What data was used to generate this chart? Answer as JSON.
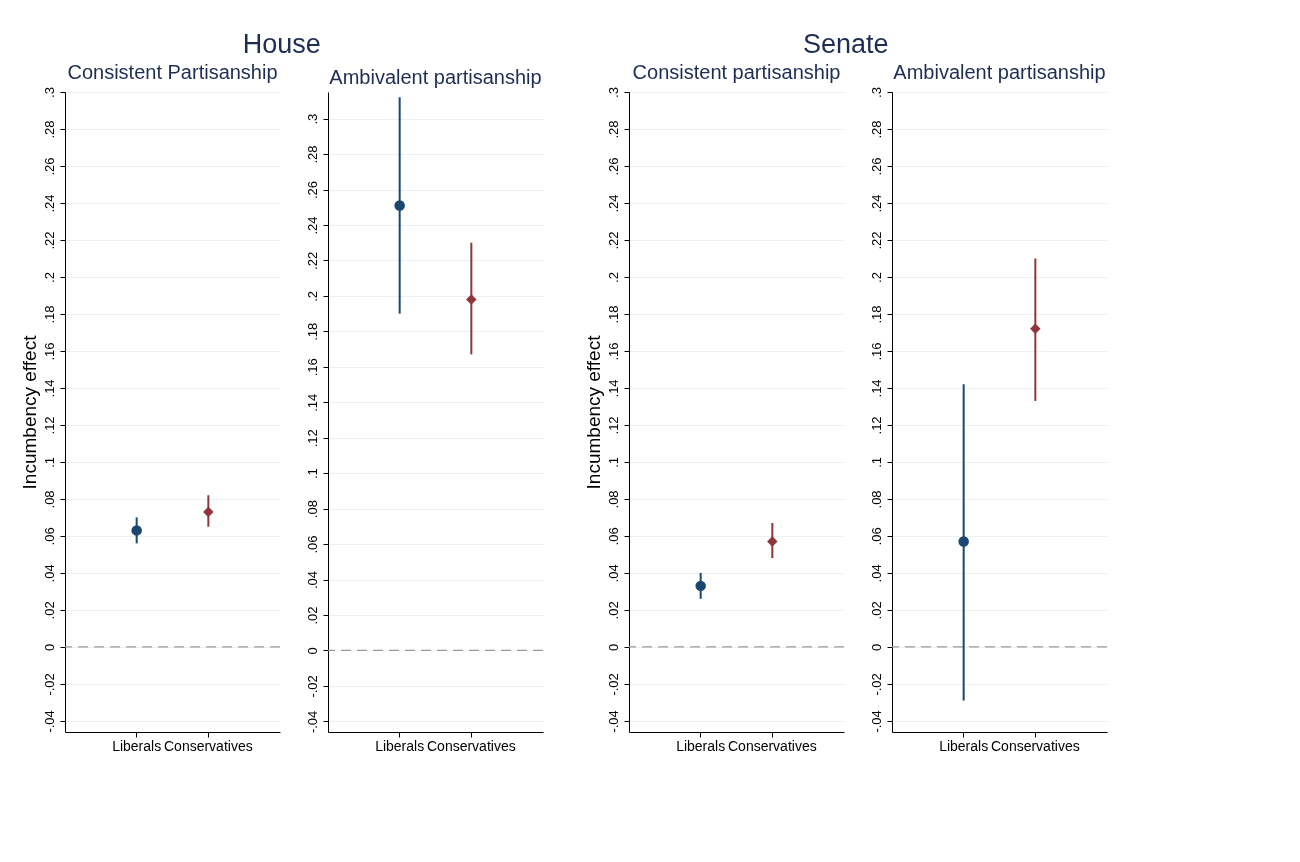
{
  "chart_data": [
    {
      "type": "scatter",
      "title": "House",
      "subtitle": "Consistent Partisanship",
      "ylabel": "Incumbency effect",
      "categories": [
        "Liberals",
        "Conservatives"
      ],
      "series": [
        {
          "color": "#1a476f",
          "marker": "circle",
          "values": [
            0.063,
            null
          ],
          "errors": [
            [
              0.056,
              0.07
            ],
            null
          ]
        },
        {
          "color": "#90353b",
          "marker": "diamond",
          "values": [
            null,
            0.073
          ],
          "errors": [
            null,
            [
              0.065,
              0.082
            ]
          ]
        }
      ],
      "ylim": [
        -0.046,
        0.3
      ],
      "yticks": [
        {
          "value": -0.04,
          "label": "-.04"
        },
        {
          "value": -0.02,
          "label": "-.02"
        },
        0,
        {
          "value": 0.02,
          "label": ".02"
        },
        {
          "value": 0.04,
          "label": ".04"
        },
        {
          "value": 0.06,
          "label": ".06"
        },
        {
          "value": 0.08,
          "label": ".08"
        },
        {
          "value": 0.1,
          "label": ".1"
        },
        {
          "value": 0.12,
          "label": ".12"
        },
        {
          "value": 0.14,
          "label": ".14"
        },
        {
          "value": 0.16,
          "label": ".16"
        },
        {
          "value": 0.18,
          "label": ".18"
        },
        {
          "value": 0.2,
          "label": ".2"
        },
        {
          "value": 0.22,
          "label": ".22"
        },
        {
          "value": 0.24,
          "label": ".24"
        },
        {
          "value": 0.26,
          "label": ".26"
        },
        {
          "value": 0.28,
          "label": ".28"
        },
        {
          "value": 0.3,
          "label": ".3"
        }
      ],
      "ref_lines": [
        {
          "axis": "y",
          "value": 0,
          "color": "#999999",
          "line_style": "dashed"
        }
      ],
      "grid": "y"
    },
    {
      "type": "scatter",
      "subtitle": "Ambivalent partisanship",
      "categories": [
        "Liberals",
        "Conservatives"
      ],
      "series": [
        {
          "color": "#1a476f",
          "marker": "circle",
          "values": [
            0.251,
            null
          ],
          "errors": [
            [
              0.19,
              0.312
            ],
            null
          ]
        },
        {
          "color": "#90353b",
          "marker": "diamond",
          "values": [
            null,
            0.198
          ],
          "errors": [
            null,
            [
              0.167,
              0.23
            ]
          ]
        }
      ],
      "ylim": [
        -0.046,
        0.315
      ],
      "yticks": [
        {
          "value": -0.04,
          "label": "-.04"
        },
        {
          "value": -0.02,
          "label": "-.02"
        },
        0,
        {
          "value": 0.02,
          "label": ".02"
        },
        {
          "value": 0.04,
          "label": ".04"
        },
        {
          "value": 0.06,
          "label": ".06"
        },
        {
          "value": 0.08,
          "label": ".08"
        },
        {
          "value": 0.1,
          "label": ".1"
        },
        {
          "value": 0.12,
          "label": ".12"
        },
        {
          "value": 0.14,
          "label": ".14"
        },
        {
          "value": 0.16,
          "label": ".16"
        },
        {
          "value": 0.18,
          "label": ".18"
        },
        {
          "value": 0.2,
          "label": ".2"
        },
        {
          "value": 0.22,
          "label": ".22"
        },
        {
          "value": 0.24,
          "label": ".24"
        },
        {
          "value": 0.26,
          "label": ".26"
        },
        {
          "value": 0.28,
          "label": ".28"
        },
        {
          "value": 0.3,
          "label": ".3"
        }
      ],
      "ref_lines": [
        {
          "axis": "y",
          "value": 0,
          "color": "#999999",
          "line_style": "dashed"
        }
      ],
      "grid": "y"
    },
    {
      "type": "scatter",
      "title": "Senate",
      "subtitle": "Consistent partisanship",
      "ylabel": "Incumbency effect",
      "categories": [
        "Liberals",
        "Conservatives"
      ],
      "series": [
        {
          "color": "#1a476f",
          "marker": "circle",
          "values": [
            0.033,
            null
          ],
          "errors": [
            [
              0.026,
              0.04
            ],
            null
          ]
        },
        {
          "color": "#90353b",
          "marker": "diamond",
          "values": [
            null,
            0.057
          ],
          "errors": [
            null,
            [
              0.048,
              0.067
            ]
          ]
        }
      ],
      "ylim": [
        -0.046,
        0.3
      ],
      "yticks": [
        {
          "value": -0.04,
          "label": "-.04"
        },
        {
          "value": -0.02,
          "label": "-.02"
        },
        0,
        {
          "value": 0.02,
          "label": ".02"
        },
        {
          "value": 0.04,
          "label": ".04"
        },
        {
          "value": 0.06,
          "label": ".06"
        },
        {
          "value": 0.08,
          "label": ".08"
        },
        {
          "value": 0.1,
          "label": ".1"
        },
        {
          "value": 0.12,
          "label": ".12"
        },
        {
          "value": 0.14,
          "label": ".14"
        },
        {
          "value": 0.16,
          "label": ".16"
        },
        {
          "value": 0.18,
          "label": ".18"
        },
        {
          "value": 0.2,
          "label": ".2"
        },
        {
          "value": 0.22,
          "label": ".22"
        },
        {
          "value": 0.24,
          "label": ".24"
        },
        {
          "value": 0.26,
          "label": ".26"
        },
        {
          "value": 0.28,
          "label": ".28"
        },
        {
          "value": 0.3,
          "label": ".3"
        }
      ],
      "ref_lines": [
        {
          "axis": "y",
          "value": 0,
          "color": "#999999",
          "line_style": "dashed"
        }
      ],
      "grid": "y"
    },
    {
      "type": "scatter",
      "subtitle": "Ambivalent partisanship",
      "categories": [
        "Liberals",
        "Conservatives"
      ],
      "series": [
        {
          "color": "#1a476f",
          "marker": "circle",
          "values": [
            0.057,
            null
          ],
          "errors": [
            [
              -0.029,
              0.142
            ],
            null
          ]
        },
        {
          "color": "#90353b",
          "marker": "diamond",
          "values": [
            null,
            0.172
          ],
          "errors": [
            null,
            [
              0.133,
              0.21
            ]
          ]
        }
      ],
      "ylim": [
        -0.046,
        0.3
      ],
      "yticks": [
        {
          "value": -0.04,
          "label": "-.04"
        },
        {
          "value": -0.02,
          "label": "-.02"
        },
        0,
        {
          "value": 0.02,
          "label": ".02"
        },
        {
          "value": 0.04,
          "label": ".04"
        },
        {
          "value": 0.06,
          "label": ".06"
        },
        {
          "value": 0.08,
          "label": ".08"
        },
        {
          "value": 0.1,
          "label": ".1"
        },
        {
          "value": 0.12,
          "label": ".12"
        },
        {
          "value": 0.14,
          "label": ".14"
        },
        {
          "value": 0.16,
          "label": ".16"
        },
        {
          "value": 0.18,
          "label": ".18"
        },
        {
          "value": 0.2,
          "label": ".2"
        },
        {
          "value": 0.22,
          "label": ".22"
        },
        {
          "value": 0.24,
          "label": ".24"
        },
        {
          "value": 0.26,
          "label": ".26"
        },
        {
          "value": 0.28,
          "label": ".28"
        },
        {
          "value": 0.3,
          "label": ".3"
        }
      ],
      "ref_lines": [
        {
          "axis": "y",
          "value": 0,
          "color": "#999999",
          "line_style": "dashed"
        }
      ],
      "grid": "y"
    }
  ]
}
